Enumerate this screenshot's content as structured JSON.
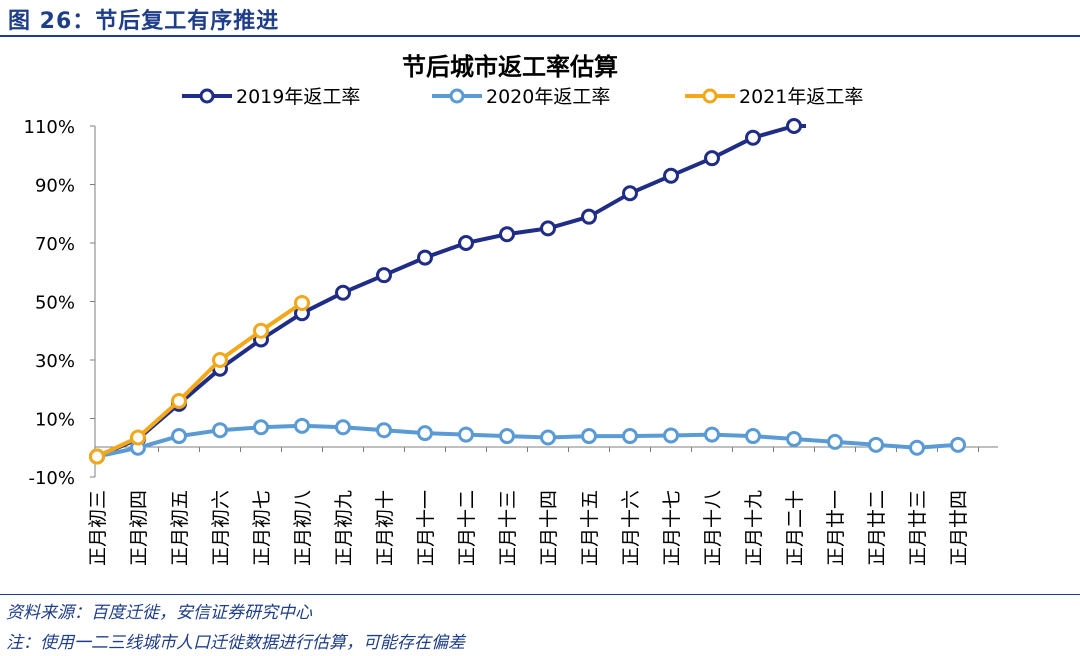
{
  "figure": {
    "label": "图 26：节后复工有序推进"
  },
  "notes": {
    "source": "资料来源：百度迁徙，安信证券研究中心",
    "remark": "注：使用一二三线城市人口迁徙数据进行估算，可能存在偏差"
  },
  "colors": {
    "accent": "#1f3e8a",
    "s2019": "#1f2d86",
    "s2020": "#5b9bd5",
    "s2021": "#f2a818",
    "axis": "#7f7f7f"
  },
  "chart_data": {
    "type": "line",
    "title": "节后城市返工率估算",
    "xlabel": "",
    "ylabel": "",
    "ylim": [
      -10,
      110
    ],
    "yticks": [
      "110%",
      "90%",
      "70%",
      "50%",
      "30%",
      "10%",
      "-10%"
    ],
    "ytick_values": [
      110,
      90,
      70,
      50,
      30,
      10,
      -10
    ],
    "grid": false,
    "legend_position": "top-center",
    "categories": [
      "正月初三",
      "正月初四",
      "正月初五",
      "正月初六",
      "正月初七",
      "正月初八",
      "正月初九",
      "正月初十",
      "正月十一",
      "正月十二",
      "正月十三",
      "正月十四",
      "正月十五",
      "正月十六",
      "正月十七",
      "正月十八",
      "正月十九",
      "正月二十",
      "正月廿一",
      "正月廿二",
      "正月廿三",
      "正月廿四"
    ],
    "series": [
      {
        "name": "2019年返工率",
        "color": "#1f2d86",
        "values": [
          -3,
          3,
          15,
          27,
          37,
          46,
          53,
          59,
          65,
          70,
          73,
          75,
          79,
          87,
          93,
          99,
          106,
          110,
          null,
          null,
          null,
          null
        ]
      },
      {
        "name": "2020年返工率",
        "color": "#5b9bd5",
        "values": [
          -3,
          0,
          4,
          6,
          7,
          7.5,
          7,
          6,
          5,
          4.5,
          4,
          3.5,
          4,
          4,
          4.2,
          4.5,
          4,
          3,
          2,
          1,
          0,
          1
        ]
      },
      {
        "name": "2021年返工率",
        "color": "#f2a818",
        "values": [
          -3,
          3.5,
          16,
          30,
          40,
          49.5,
          null,
          null,
          null,
          null,
          null,
          null,
          null,
          null,
          null,
          null,
          null,
          null,
          null,
          null,
          null,
          null
        ]
      }
    ]
  }
}
